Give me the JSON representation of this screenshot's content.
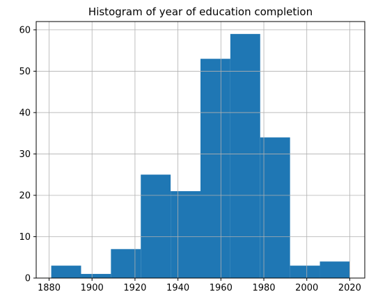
{
  "chart_data": {
    "type": "bar",
    "title": "Histogram of year of education completion",
    "xlabel": "",
    "ylabel": "",
    "xlim": [
      1874,
      2027
    ],
    "ylim": [
      0,
      62
    ],
    "bin_edges": [
      1881,
      1894.9,
      1908.8,
      1922.7,
      1936.6,
      1950.5,
      1964.4,
      1978.3,
      1992.2,
      2006.1,
      2020
    ],
    "values": [
      3,
      1,
      7,
      25,
      21,
      53,
      59,
      34,
      3,
      4
    ],
    "x_ticks": [
      1880,
      1900,
      1920,
      1940,
      1960,
      1980,
      2000,
      2020
    ],
    "y_ticks": [
      0,
      10,
      20,
      30,
      40,
      50,
      60
    ],
    "bar_color": "#1f77b4",
    "grid": true
  }
}
